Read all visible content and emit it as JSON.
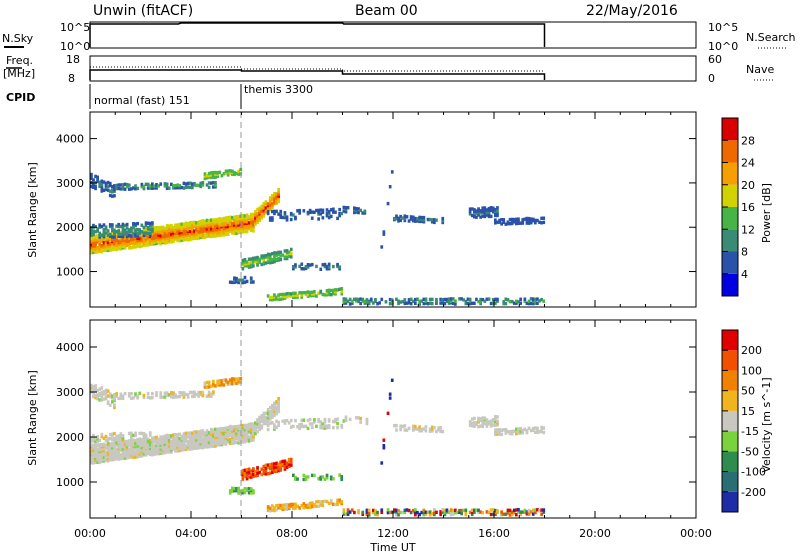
{
  "header": {
    "site": "Unwin (fitACF)",
    "beam": "Beam 00",
    "date": "22/May/2016"
  },
  "top_strips": {
    "nsky": {
      "label": "N.Sky",
      "tick_top": "10^5",
      "tick_bottom": "10^0",
      "right_tick_top": "10^5",
      "right_tick_bottom": "10^0",
      "right_label": "N.Search"
    },
    "freq": {
      "label_line1": "Freq.",
      "label_line2": "[MHz]",
      "tick_top": "18",
      "tick_bottom": "8",
      "right_tick_top": "60",
      "right_tick_bottom": "0",
      "right_label": "Nave"
    },
    "cpid": {
      "label": "CPID",
      "segments": [
        {
          "name": "normal (fast) 151",
          "start_hour": 0
        },
        {
          "name": "themis 3300",
          "start_hour": 6
        }
      ]
    }
  },
  "chart_data": [
    {
      "type": "heatmap",
      "name": "power",
      "ylabel": "Slant Range [km]",
      "yticks": [
        "1000",
        "2000",
        "3000",
        "4000"
      ],
      "ylim": [
        200,
        4600
      ],
      "xlim": [
        0,
        24
      ],
      "colorbar": {
        "label": "Power [dB]",
        "ticks": [
          "4",
          "8",
          "12",
          "16",
          "20",
          "24",
          "28"
        ],
        "colors": [
          "#0000e0",
          "#2a52a8",
          "#3a8a74",
          "#46b446",
          "#d2d200",
          "#f5a000",
          "#ee6a00",
          "#d80000"
        ]
      },
      "data_end_hour": 18
    },
    {
      "type": "heatmap",
      "name": "velocity",
      "ylabel": "Slant Range [km]",
      "yticks": [
        "1000",
        "2000",
        "3000",
        "4000"
      ],
      "ylim": [
        200,
        4600
      ],
      "xlim": [
        0,
        24
      ],
      "xlabel": "Time UT",
      "xticks": [
        "00:00",
        "04:00",
        "08:00",
        "12:00",
        "16:00",
        "20:00",
        "00:00"
      ],
      "colorbar": {
        "label": "Velocity [m s^-1]",
        "ticks": [
          "200",
          "100",
          "50",
          "15",
          "-15",
          "-50",
          "-100",
          "-200"
        ],
        "colors": [
          "#1e2ca8",
          "#286e72",
          "#2e8c50",
          "#7ad23c",
          "#c8c8c0",
          "#f0b41e",
          "#f08200",
          "#f05000",
          "#e00000"
        ]
      },
      "data_end_hour": 18
    }
  ],
  "legend_colors": {
    "power": [
      "#0000e0",
      "#2a52a8",
      "#3a8a74",
      "#46b446",
      "#d2d200",
      "#f5a000",
      "#ee6a00",
      "#d80000"
    ],
    "velocity": [
      "#1e2ca8",
      "#286e72",
      "#2e8c50",
      "#7ad23c",
      "#c8c8c0",
      "#f0b41e",
      "#f08200",
      "#f05000",
      "#e00000"
    ]
  }
}
